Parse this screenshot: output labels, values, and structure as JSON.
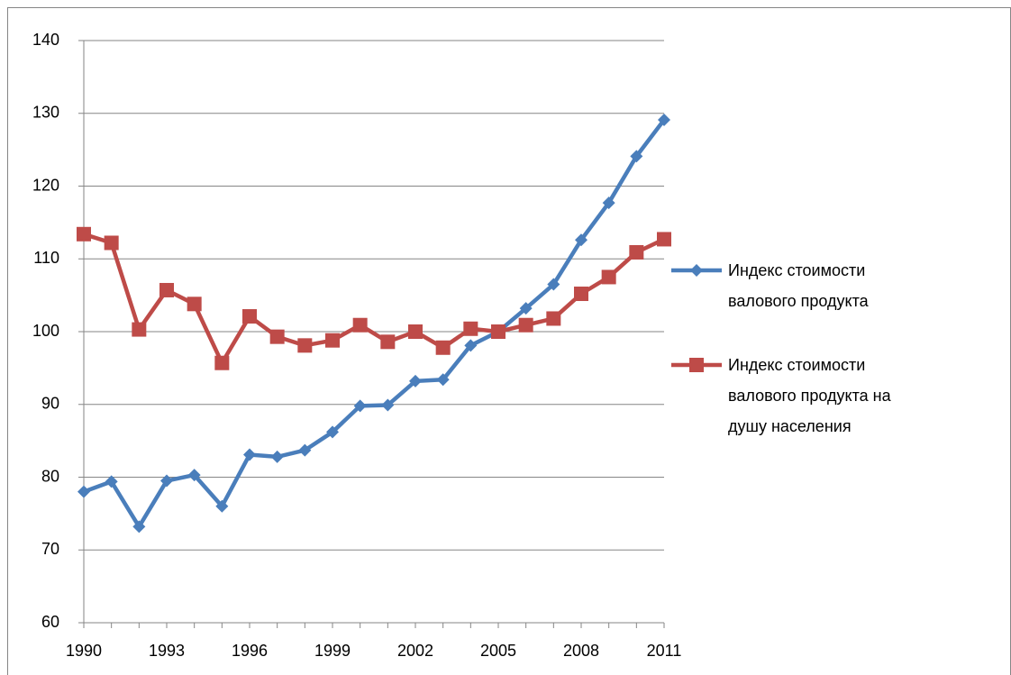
{
  "chart_data": {
    "type": "line",
    "x": [
      1990,
      1991,
      1992,
      1993,
      1994,
      1995,
      1996,
      1997,
      1998,
      1999,
      2000,
      2001,
      2002,
      2003,
      2004,
      2005,
      2006,
      2007,
      2008,
      2009,
      2010,
      2011
    ],
    "series": [
      {
        "name": "Индекс стоимости валового продукта",
        "color": "#4a7ebb",
        "marker": "diamond",
        "values": [
          78.0,
          79.4,
          73.2,
          79.5,
          80.3,
          76.0,
          83.1,
          82.8,
          83.7,
          86.2,
          89.8,
          89.9,
          93.2,
          93.4,
          98.1,
          100.0,
          103.2,
          106.5,
          112.6,
          117.7,
          124.1,
          129.1
        ]
      },
      {
        "name": "Индекс стоимости валового продукта на душу населения",
        "color": "#be4b48",
        "marker": "square",
        "values": [
          113.4,
          112.2,
          100.3,
          105.7,
          103.8,
          95.7,
          102.1,
          99.3,
          98.1,
          98.8,
          100.9,
          98.6,
          100.0,
          97.8,
          100.4,
          100.0,
          100.9,
          101.8,
          105.2,
          107.5,
          110.9,
          112.7
        ]
      }
    ],
    "xlim": [
      1990,
      2011
    ],
    "xticks": [
      1990,
      1993,
      1996,
      1999,
      2002,
      2005,
      2008,
      2011
    ],
    "ylim": [
      60,
      140
    ],
    "yticks": [
      60,
      70,
      80,
      90,
      100,
      110,
      120,
      130,
      140
    ],
    "grid": true,
    "legend": "right"
  }
}
